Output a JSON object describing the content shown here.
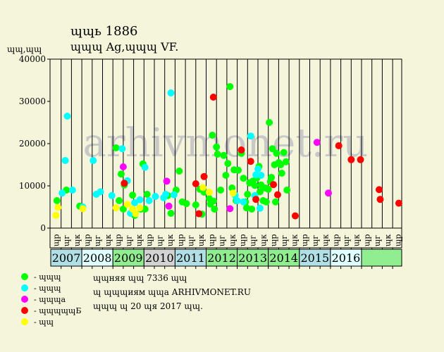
{
  "header": {
    "title": "ɰɰь 1886",
    "subtitle": "ɰɰɰ Ag,ɰɰɰ VF.",
    "y_unit": "ɰɰ,ɰɰ"
  },
  "legend": [
    {
      "label": "- ɰɰɰ",
      "color": "#00ff00"
    },
    {
      "label": "- ɰɰɰ",
      "color": "#00ffff"
    },
    {
      "label": "- ɰɰɰа",
      "color": "#ff00ff"
    },
    {
      "label": "- ɰɰɰɰɰБ",
      "color": "#ff0000"
    },
    {
      "label": "- ɰɰ",
      "color": "#ffff00"
    }
  ],
  "info": {
    "line1": "ɰɰняя ɰɰ 7336 ɰɰ",
    "line2": "ɰ ɰɰɰиям ɰɰа ARHIVMONET.RU",
    "line3": "ɰɰɰ ɰ 20 ɰя 2017 ɰɰ."
  },
  "chart_data": {
    "type": "scatter",
    "watermark": "arhivmonet.ru",
    "y_ticks": [
      0,
      10000,
      20000,
      30000,
      40000
    ],
    "y_tick_labels": [
      "0",
      "10000",
      "20000",
      "30000",
      "40000"
    ],
    "ylim": [
      0,
      40000
    ],
    "quarter_labels": [
      "ɰр",
      "ɰг",
      "ɰк",
      "ɰр",
      "ɰг",
      "ɰк",
      "ɰр",
      "ɰг",
      "ɰк",
      "ɰр",
      "ɰг",
      "ɰк",
      "ɰр",
      "ɰг",
      "ɰк",
      "ɰр",
      "ɰг",
      "ɰк",
      "ɰр",
      "ɰг",
      "ɰк",
      "ɰр",
      "ɰг",
      "ɰк",
      "ɰр",
      "ɰг",
      "ɰк",
      "ɰр",
      "ɰг",
      "ɰк",
      "ɰр",
      "ɰг",
      "ɰк",
      "ɰр"
    ],
    "years": [
      {
        "label": "2007",
        "color": "#b0e0e6"
      },
      {
        "label": "2008",
        "color": "#e0ffff"
      },
      {
        "label": "2009",
        "color": "#90ee90"
      },
      {
        "label": "2010",
        "color": "#d3d3d3"
      },
      {
        "label": "2011",
        "color": "#b0e0e6"
      },
      {
        "label": "2012",
        "color": "#90ee90"
      },
      {
        "label": "2013",
        "color": "#90ee90"
      },
      {
        "label": "2014",
        "color": "#90ee90"
      },
      {
        "label": "2015",
        "color": "#b0e0e6"
      },
      {
        "label": "2016",
        "color": "#e0ffff"
      },
      {
        "label": "",
        "color": "#90ee90"
      }
    ],
    "series": [
      {
        "color": "#00ff00",
        "points": [
          [
            0.1,
            6500
          ],
          [
            1.0,
            9000
          ],
          [
            2.3,
            5200
          ],
          [
            5.8,
            19000
          ],
          [
            6.1,
            6500
          ],
          [
            6.3,
            12800
          ],
          [
            6.5,
            4500
          ],
          [
            6.6,
            10200
          ],
          [
            7.4,
            7800
          ],
          [
            7.6,
            3000
          ],
          [
            8.2,
            4500
          ],
          [
            8.4,
            15200
          ],
          [
            8.6,
            4500
          ],
          [
            8.8,
            8000
          ],
          [
            10.8,
            7700
          ],
          [
            11.1,
            3500
          ],
          [
            11.6,
            9000
          ],
          [
            11.9,
            13500
          ],
          [
            12.2,
            6200
          ],
          [
            12.6,
            5800
          ],
          [
            13.5,
            5500
          ],
          [
            13.9,
            9200
          ],
          [
            14.1,
            3300
          ],
          [
            14.3,
            8500
          ],
          [
            14.8,
            7000
          ],
          [
            14.9,
            5700
          ],
          [
            15.1,
            22000
          ],
          [
            15.2,
            6400
          ],
          [
            15.3,
            4500
          ],
          [
            15.5,
            19200
          ],
          [
            15.6,
            17500
          ],
          [
            15.9,
            9000
          ],
          [
            16.2,
            17200
          ],
          [
            16.4,
            12500
          ],
          [
            16.6,
            15300
          ],
          [
            16.8,
            33500
          ],
          [
            17.0,
            9500
          ],
          [
            17.2,
            13800
          ],
          [
            17.4,
            6500
          ],
          [
            17.6,
            13700
          ],
          [
            17.9,
            17700
          ],
          [
            18.1,
            11800
          ],
          [
            18.3,
            6200
          ],
          [
            18.4,
            4800
          ],
          [
            18.5,
            8000
          ],
          [
            18.7,
            10700
          ],
          [
            18.9,
            4500
          ],
          [
            19.0,
            11100
          ],
          [
            19.2,
            10100
          ],
          [
            19.4,
            11900
          ],
          [
            19.6,
            14600
          ],
          [
            19.7,
            8600
          ],
          [
            19.8,
            10200
          ],
          [
            20.0,
            6500
          ],
          [
            20.2,
            9500
          ],
          [
            20.3,
            6200
          ],
          [
            20.5,
            9200
          ],
          [
            20.6,
            25000
          ],
          [
            20.7,
            11000
          ],
          [
            20.8,
            12000
          ],
          [
            20.9,
            18800
          ],
          [
            21.1,
            15000
          ],
          [
            21.2,
            6200
          ],
          [
            21.3,
            17700
          ],
          [
            21.5,
            15500
          ],
          [
            21.7,
            15000
          ],
          [
            21.8,
            13000
          ],
          [
            22.0,
            17900
          ],
          [
            22.2,
            15700
          ],
          [
            22.3,
            9000
          ]
        ]
      },
      {
        "color": "#00ffff",
        "points": [
          [
            0.6,
            8300
          ],
          [
            0.9,
            16000
          ],
          [
            1.1,
            26500
          ],
          [
            1.6,
            9000
          ],
          [
            2.6,
            5000
          ],
          [
            3.6,
            16000
          ],
          [
            3.9,
            8000
          ],
          [
            4.3,
            8600
          ],
          [
            5.4,
            7700
          ],
          [
            6.4,
            18800
          ],
          [
            6.9,
            11200
          ],
          [
            7.2,
            3500
          ],
          [
            7.6,
            6000
          ],
          [
            8.1,
            6700
          ],
          [
            8.6,
            14400
          ],
          [
            9.0,
            6500
          ],
          [
            9.6,
            7500
          ],
          [
            10.4,
            7200
          ],
          [
            10.6,
            8000
          ],
          [
            11.1,
            32000
          ],
          [
            11.4,
            7900
          ],
          [
            17.3,
            7800
          ],
          [
            17.5,
            6500
          ],
          [
            18.1,
            6200
          ],
          [
            18.8,
            21800
          ],
          [
            19.2,
            7700
          ],
          [
            19.3,
            12600
          ],
          [
            19.5,
            14000
          ],
          [
            19.7,
            4700
          ],
          [
            19.8,
            12500
          ]
        ]
      },
      {
        "color": "#ff00ff",
        "points": [
          [
            6.5,
            14500
          ],
          [
            10.7,
            11100
          ],
          [
            10.9,
            5200
          ],
          [
            16.8,
            4600
          ],
          [
            25.2,
            20300
          ],
          [
            26.3,
            8300
          ]
        ]
      },
      {
        "color": "#ff0000",
        "points": [
          [
            6.6,
            10600
          ],
          [
            13.5,
            10500
          ],
          [
            13.8,
            3400
          ],
          [
            14.3,
            12200
          ],
          [
            15.2,
            31000
          ],
          [
            17.9,
            18500
          ],
          [
            18.8,
            15800
          ],
          [
            19.3,
            6800
          ],
          [
            21.0,
            10300
          ],
          [
            21.4,
            7900
          ],
          [
            23.1,
            2900
          ],
          [
            27.3,
            19500
          ],
          [
            28.5,
            16200
          ],
          [
            29.4,
            16200
          ],
          [
            31.2,
            9100
          ],
          [
            31.3,
            6800
          ],
          [
            33.1,
            5900
          ]
        ]
      },
      {
        "color": "#ffff00",
        "points": [
          [
            0.0,
            3000
          ],
          [
            0.2,
            4900
          ],
          [
            2.6,
            4600
          ],
          [
            5.8,
            4800
          ],
          [
            6.9,
            5600
          ],
          [
            7.4,
            4500
          ],
          [
            7.7,
            3400
          ],
          [
            8.1,
            4800
          ],
          [
            14.2,
            9600
          ],
          [
            14.8,
            8500
          ],
          [
            17.1,
            8300
          ]
        ]
      }
    ]
  }
}
